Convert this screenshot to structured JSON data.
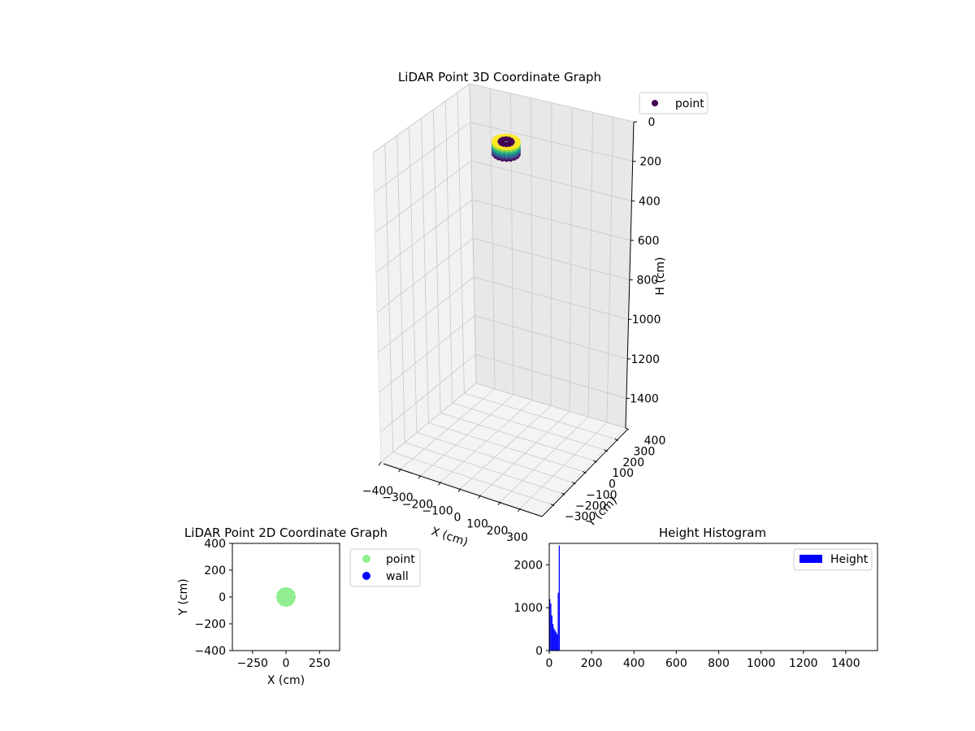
{
  "chart_data": [
    {
      "type": "scatter3d",
      "title": "LiDAR Point 3D Coordinate Graph",
      "xlabel": "X (cm)",
      "ylabel": "Y (cm)",
      "zlabel": "H (cm)",
      "xlim": [
        -400,
        400
      ],
      "ylim": [
        -400,
        400
      ],
      "zlim": [
        1550,
        0
      ],
      "zinverted": true,
      "xticks": [
        -400,
        -300,
        -200,
        -100,
        0,
        100,
        200,
        300
      ],
      "yticks": [
        -300,
        -200,
        -100,
        0,
        100,
        200,
        300,
        400
      ],
      "zticks": [
        0,
        200,
        400,
        600,
        800,
        1000,
        1200,
        1400
      ],
      "grid": true,
      "legend": {
        "placement": "top-right",
        "entries": [
          {
            "label": "point",
            "color": "#440154"
          }
        ]
      },
      "colormap": "viridis",
      "series": [
        {
          "name": "point",
          "cluster": {
            "x_center": 0,
            "y_center": 0,
            "radius": 50,
            "h_min": 0,
            "h_max": 60
          }
        }
      ]
    },
    {
      "type": "scatter",
      "title": "LiDAR Point 2D Coordinate Graph",
      "xlabel": "X (cm)",
      "ylabel": "Y (cm)",
      "xlim": [
        -400,
        400
      ],
      "ylim": [
        -400,
        400
      ],
      "xticks": [
        -250,
        0,
        250
      ],
      "yticks": [
        -400,
        -200,
        0,
        200,
        400
      ],
      "legend": {
        "placement": "outside-right",
        "entries": [
          {
            "label": "point",
            "color": "#90ee90"
          },
          {
            "label": "wall",
            "color": "#0000ff"
          }
        ]
      },
      "series": [
        {
          "name": "point",
          "color": "#90ee90",
          "cluster": {
            "x_center": 0,
            "y_center": 0,
            "radius": 50
          }
        },
        {
          "name": "wall",
          "color": "#0000ff",
          "points": []
        }
      ]
    },
    {
      "type": "bar",
      "title": "Height Histogram",
      "xlim": [
        0,
        1550
      ],
      "ylim": [
        0,
        2500
      ],
      "xticks": [
        0,
        200,
        400,
        600,
        800,
        1000,
        1200,
        1400
      ],
      "yticks": [
        0,
        1000,
        2000
      ],
      "legend": {
        "placement": "top-right",
        "entries": [
          {
            "label": "Height",
            "color": "#0000ff"
          }
        ]
      },
      "series": [
        {
          "name": "Height",
          "color": "#0000ff",
          "bin_width": 5,
          "bins": [
            [
              0,
              1200
            ],
            [
              5,
              1100
            ],
            [
              10,
              820
            ],
            [
              15,
              620
            ],
            [
              20,
              520
            ],
            [
              25,
              470
            ],
            [
              30,
              430
            ],
            [
              35,
              380
            ],
            [
              40,
              1350
            ],
            [
              45,
              2450
            ],
            [
              50,
              0
            ]
          ]
        }
      ]
    }
  ]
}
